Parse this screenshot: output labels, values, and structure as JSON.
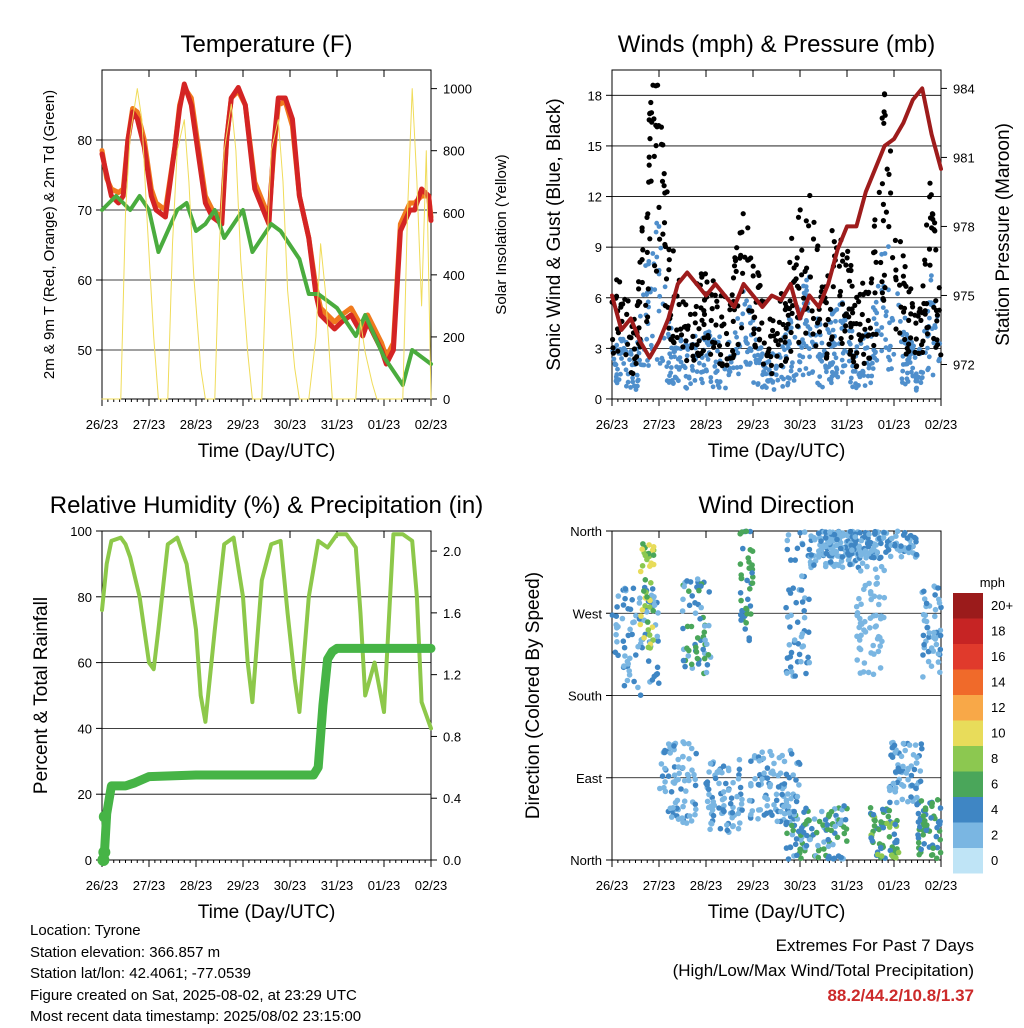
{
  "station": {
    "location": "Location: Tyrone",
    "elevation": "Station elevation: 366.857 m",
    "latlon": "Station lat/lon: 42.4061; -77.0539",
    "created": "Figure created on Sat, 2025-08-02, at 23:29 UTC",
    "latest": "Most recent data timestamp: 2025/08/02 23:15:00"
  },
  "extremes": {
    "line1": "Extremes For Past 7 Days",
    "line2": "(High/Low/Max Wind/Total Precipitation)",
    "values": "88.2/44.2/10.8/1.37",
    "color": "#cc2a2a"
  },
  "chart_data": [
    {
      "id": "temperature",
      "type": "line",
      "title": "Temperature (F)",
      "xlabel": "Time (Day/UTC)",
      "ylabel": "2m & 9m T (Red, Orange) & 2m Td (Green)",
      "y2label": "Solar Insolation (Yellow)",
      "x_ticks": [
        "26/23",
        "27/23",
        "28/23",
        "29/23",
        "30/23",
        "31/23",
        "01/23",
        "02/23"
      ],
      "xlim": [
        0,
        7
      ],
      "ylim": [
        43,
        90
      ],
      "y_ticks": [
        50,
        60,
        70,
        80
      ],
      "y2lim": [
        0,
        1060
      ],
      "y2_ticks": [
        0,
        200,
        400,
        600,
        800,
        1000
      ],
      "series": [
        {
          "color": "#f07a1e",
          "width": 5,
          "x": [
            0,
            0.1,
            0.2,
            0.35,
            0.45,
            0.55,
            0.65,
            0.75,
            0.9,
            1.05,
            1.15,
            1.35,
            1.55,
            1.65,
            1.75,
            1.9,
            2.05,
            2.2,
            2.35,
            2.55,
            2.65,
            2.75,
            2.9,
            3.05,
            3.25,
            3.55,
            3.65,
            3.75,
            3.9,
            4.05,
            4.2,
            4.4,
            4.55,
            4.65,
            4.8,
            4.95,
            5.1,
            5.3,
            5.55,
            5.65,
            5.8,
            5.95,
            6.05,
            6.2,
            6.35,
            6.55,
            6.65,
            6.8,
            6.95,
            7
          ],
          "y": [
            78.5,
            74.5,
            73,
            72.5,
            73,
            80,
            84.5,
            84,
            80,
            73,
            71,
            70,
            79,
            85,
            87.5,
            86,
            79,
            72,
            70,
            69,
            80,
            86,
            87,
            85,
            74,
            69,
            78,
            85,
            85.5,
            82,
            72,
            66,
            59,
            56,
            55,
            54,
            55,
            56,
            53,
            55,
            53,
            51,
            49,
            51,
            68,
            71,
            71,
            72,
            72,
            69
          ]
        },
        {
          "color": "#d42424",
          "width": 5,
          "x": [
            0,
            0.1,
            0.2,
            0.35,
            0.45,
            0.55,
            0.65,
            0.75,
            0.9,
            1.05,
            1.15,
            1.35,
            1.55,
            1.65,
            1.75,
            1.9,
            2.05,
            2.2,
            2.35,
            2.55,
            2.65,
            2.75,
            2.9,
            3.05,
            3.25,
            3.55,
            3.65,
            3.75,
            3.9,
            4.05,
            4.2,
            4.4,
            4.55,
            4.65,
            4.8,
            4.95,
            5.1,
            5.3,
            5.55,
            5.65,
            5.8,
            5.95,
            6.05,
            6.2,
            6.35,
            6.55,
            6.65,
            6.8,
            6.95,
            7
          ],
          "y": [
            78,
            75,
            72,
            71,
            72,
            80,
            84,
            83,
            79,
            72,
            70,
            69,
            79,
            84.5,
            88,
            85,
            78,
            71,
            69,
            68,
            80,
            86,
            87.5,
            85,
            73,
            68,
            79,
            86,
            86,
            83,
            72,
            66,
            58,
            55,
            54,
            53,
            54,
            55,
            52,
            54,
            52,
            50,
            48,
            50,
            67,
            70,
            70,
            73,
            72,
            68.5
          ]
        },
        {
          "color": "#4aac3e",
          "width": 4,
          "x": [
            0,
            0.15,
            0.3,
            0.45,
            0.6,
            0.8,
            1.0,
            1.2,
            1.4,
            1.6,
            1.8,
            2.0,
            2.2,
            2.4,
            2.6,
            2.8,
            3.0,
            3.2,
            3.4,
            3.6,
            3.8,
            4.0,
            4.2,
            4.4,
            4.6,
            4.8,
            5.0,
            5.2,
            5.4,
            5.6,
            5.8,
            6.0,
            6.2,
            6.4,
            6.6,
            6.8,
            7
          ],
          "y": [
            70,
            71,
            72,
            71,
            70,
            72,
            70,
            64,
            67,
            70,
            71,
            67,
            68,
            70,
            66,
            68,
            70,
            64,
            66,
            68,
            67,
            65,
            63,
            58,
            58,
            57,
            56,
            54,
            52,
            55,
            52,
            49,
            47,
            45,
            50,
            49,
            48
          ]
        },
        {
          "color": "#f0dc5a",
          "width": 1,
          "axis": "y2",
          "x": [
            0,
            0.2,
            0.4,
            0.5,
            0.6,
            0.75,
            0.85,
            0.95,
            1.1,
            1.2,
            1.4,
            1.5,
            1.6,
            1.75,
            1.85,
            1.95,
            2.1,
            2.2,
            2.4,
            2.5,
            2.6,
            2.75,
            2.85,
            2.95,
            3.1,
            3.2,
            3.4,
            3.5,
            3.6,
            3.75,
            3.85,
            3.95,
            4.1,
            4.2,
            4.4,
            4.55,
            4.65,
            4.75,
            4.9,
            5.4,
            5.5,
            5.6,
            5.75,
            5.85,
            6.0,
            6.2,
            6.4,
            6.5,
            6.6,
            6.7,
            6.8,
            6.9,
            7
          ],
          "y": [
            0,
            0,
            0,
            600,
            850,
            1000,
            900,
            600,
            200,
            0,
            0,
            500,
            800,
            900,
            700,
            400,
            100,
            0,
            0,
            500,
            800,
            950,
            800,
            450,
            150,
            0,
            0,
            450,
            800,
            900,
            700,
            350,
            100,
            0,
            0,
            200,
            500,
            350,
            0,
            0,
            250,
            150,
            50,
            0,
            0,
            0,
            0,
            600,
            1000,
            700,
            300,
            800,
            0
          ]
        }
      ]
    },
    {
      "id": "winds",
      "type": "scatter",
      "title": "Winds (mph) & Pressure (mb)",
      "xlabel": "Time (Day/UTC)",
      "ylabel": "Sonic Wind & Gust (Blue, Black)",
      "y2label": "Station Pressure (Maroon)",
      "x_ticks": [
        "26/23",
        "27/23",
        "28/23",
        "29/23",
        "30/23",
        "31/23",
        "01/23",
        "02/23"
      ],
      "xlim": [
        0,
        7
      ],
      "ylim": [
        0,
        19.5
      ],
      "y_ticks": [
        0,
        3,
        6,
        9,
        12,
        15,
        18
      ],
      "y2lim": [
        970.5,
        984.8
      ],
      "y2_ticks": [
        972,
        975,
        978,
        981,
        984
      ],
      "gust_profile": {
        "x": [
          0,
          0.3,
          0.5,
          0.8,
          1.0,
          1.2,
          1.5,
          2.0,
          2.5,
          2.8,
          3.2,
          3.5,
          3.8,
          4.2,
          4.5,
          4.8,
          5.2,
          5.5,
          5.8,
          6.2,
          6.5,
          6.8,
          7
        ],
        "y": [
          6,
          4,
          3,
          12,
          14,
          7,
          4,
          5,
          4,
          8,
          4,
          3,
          6,
          9,
          4,
          8,
          4,
          5,
          12,
          6,
          3,
          9,
          4
        ]
      },
      "wind_profile": {
        "x": [
          0,
          0.3,
          0.5,
          0.8,
          1.0,
          1.2,
          1.5,
          2.0,
          2.5,
          2.8,
          3.2,
          3.5,
          3.8,
          4.2,
          4.5,
          4.8,
          5.2,
          5.5,
          5.8,
          6.2,
          6.5,
          6.8,
          7
        ],
        "y": [
          3,
          2,
          1.5,
          6,
          7,
          3,
          2,
          2.5,
          2,
          4,
          2,
          1.5,
          3,
          4.5,
          2,
          4,
          2,
          2.5,
          6,
          3,
          1.5,
          4.5,
          2
        ]
      },
      "pressure": {
        "color": "#9e1c1c",
        "x": [
          0,
          0.2,
          0.4,
          0.6,
          0.8,
          1.0,
          1.2,
          1.4,
          1.6,
          1.8,
          2.0,
          2.2,
          2.4,
          2.6,
          2.8,
          3.0,
          3.2,
          3.4,
          3.6,
          3.8,
          4.0,
          4.2,
          4.4,
          4.6,
          4.8,
          5.0,
          5.2,
          5.4,
          5.6,
          5.8,
          6.0,
          6.2,
          6.4,
          6.6,
          6.8,
          7
        ],
        "y": [
          975,
          973.5,
          974,
          973,
          972.3,
          973,
          974,
          975.5,
          976,
          975.5,
          975,
          975.5,
          975,
          974.5,
          975.5,
          975,
          974.5,
          975,
          974.8,
          975.5,
          974,
          975,
          974.5,
          975.5,
          977,
          978,
          978,
          979.5,
          980.5,
          981.5,
          981.8,
          982.5,
          983.5,
          984,
          982,
          980.5
        ]
      }
    },
    {
      "id": "humidity",
      "type": "line",
      "title": "Relative Humidity (%) & Precipitation (in)",
      "xlabel": "Time (Day/UTC)",
      "ylabel": "Percent & Total Rainfall",
      "x_ticks": [
        "26/23",
        "27/23",
        "28/23",
        "29/23",
        "30/23",
        "31/23",
        "01/23",
        "02/23"
      ],
      "xlim": [
        0,
        7
      ],
      "ylim": [
        0,
        100
      ],
      "y_ticks": [
        0,
        20,
        40,
        60,
        80,
        100
      ],
      "y2lim": [
        0,
        2.13
      ],
      "y2_ticks": [
        "0.0",
        "0.4",
        "0.8",
        "1.2",
        "1.6",
        "2.0"
      ],
      "rh": {
        "color": "#8dc84a",
        "x": [
          0,
          0.1,
          0.2,
          0.4,
          0.5,
          0.6,
          0.8,
          0.9,
          1.0,
          1.1,
          1.2,
          1.4,
          1.6,
          1.8,
          2.0,
          2.1,
          2.2,
          2.4,
          2.6,
          2.8,
          3.0,
          3.1,
          3.2,
          3.4,
          3.6,
          3.8,
          3.95,
          4.1,
          4.2,
          4.4,
          4.6,
          4.8,
          5.0,
          5.2,
          5.4,
          5.5,
          5.6,
          5.8,
          6.0,
          6.2,
          6.4,
          6.6,
          6.7,
          6.8,
          7
        ],
        "y": [
          76,
          90,
          97,
          98,
          96,
          92,
          80,
          70,
          60,
          58,
          70,
          96,
          98,
          90,
          70,
          50,
          42,
          70,
          96,
          98,
          80,
          60,
          48,
          85,
          96,
          97,
          75,
          55,
          45,
          80,
          97,
          95,
          99,
          99,
          95,
          75,
          50,
          60,
          45,
          99,
          99,
          97,
          80,
          48,
          40
        ]
      },
      "precip": {
        "color": "#46b446",
        "x": [
          0,
          0.05,
          0.1,
          0.2,
          0.5,
          0.7,
          1.0,
          2.0,
          3.0,
          4.0,
          4.5,
          4.6,
          4.7,
          4.8,
          4.9,
          5.0,
          5.5,
          6.0,
          6.5,
          7
        ],
        "y": [
          0,
          0.03,
          0.3,
          0.48,
          0.48,
          0.5,
          0.54,
          0.55,
          0.55,
          0.55,
          0.55,
          0.6,
          1.0,
          1.3,
          1.35,
          1.37,
          1.37,
          1.37,
          1.37,
          1.37
        ]
      }
    },
    {
      "id": "direction",
      "type": "scatter",
      "title": "Wind Direction",
      "xlabel": "Time (Day/UTC)",
      "ylabel": "Direction (Colored By Speed)",
      "x_ticks": [
        "26/23",
        "27/23",
        "28/23",
        "29/23",
        "30/23",
        "31/23",
        "01/23",
        "02/23"
      ],
      "xlim": [
        0,
        7
      ],
      "y_ticks": [
        "North",
        "East",
        "South",
        "West",
        "North"
      ],
      "legend_title": "mph",
      "legend_labels": [
        "20+",
        "18",
        "16",
        "14",
        "12",
        "10",
        "8",
        "6",
        "4",
        "2",
        "0"
      ],
      "legend_colors": [
        "#9b1b1b",
        "#c62424",
        "#e03a2c",
        "#f06a2a",
        "#f8a848",
        "#e8dc5a",
        "#8cc850",
        "#4aa65a",
        "#3f86c4",
        "#7ab6e2",
        "#bfe4f6"
      ],
      "clusters": [
        {
          "x": [
            0.0,
            1.0
          ],
          "dir": [
            180,
            300
          ],
          "speed": [
            1,
            5
          ]
        },
        {
          "x": [
            0.6,
            0.9
          ],
          "dir": [
            230,
            350
          ],
          "speed": [
            6,
            11
          ]
        },
        {
          "x": [
            1.0,
            1.8
          ],
          "dir": [
            40,
            130
          ],
          "speed": [
            1,
            4
          ]
        },
        {
          "x": [
            1.5,
            2.1
          ],
          "dir": [
            200,
            310
          ],
          "speed": [
            2,
            6
          ]
        },
        {
          "x": [
            2.0,
            2.8
          ],
          "dir": [
            30,
            110
          ],
          "speed": [
            1,
            4
          ]
        },
        {
          "x": [
            2.7,
            3.0
          ],
          "dir": [
            240,
            360
          ],
          "speed": [
            3,
            7
          ]
        },
        {
          "x": [
            2.9,
            4.0
          ],
          "dir": [
            40,
            120
          ],
          "speed": [
            1,
            4
          ]
        },
        {
          "x": [
            3.7,
            4.2
          ],
          "dir": [
            200,
            360
          ],
          "speed": [
            2,
            5
          ]
        },
        {
          "x": [
            3.7,
            5.0
          ],
          "dir": [
            0,
            60
          ],
          "speed": [
            2,
            7
          ]
        },
        {
          "x": [
            4.2,
            5.3
          ],
          "dir": [
            320,
            360
          ],
          "speed": [
            1,
            4
          ]
        },
        {
          "x": [
            5.5,
            6.1
          ],
          "dir": [
            0,
            60
          ],
          "speed": [
            3,
            8
          ]
        },
        {
          "x": [
            5.9,
            6.6
          ],
          "dir": [
            60,
            130
          ],
          "speed": [
            1,
            4
          ]
        },
        {
          "x": [
            5.2,
            5.8
          ],
          "dir": [
            200,
            330
          ],
          "speed": [
            1,
            3
          ]
        },
        {
          "x": [
            6.5,
            7.0
          ],
          "dir": [
            0,
            70
          ],
          "speed": [
            3,
            7
          ]
        },
        {
          "x": [
            6.6,
            7.0
          ],
          "dir": [
            200,
            300
          ],
          "speed": [
            1,
            4
          ]
        },
        {
          "x": [
            4.5,
            6.5
          ],
          "dir": [
            330,
            360
          ],
          "speed": [
            1,
            5
          ]
        }
      ]
    }
  ]
}
